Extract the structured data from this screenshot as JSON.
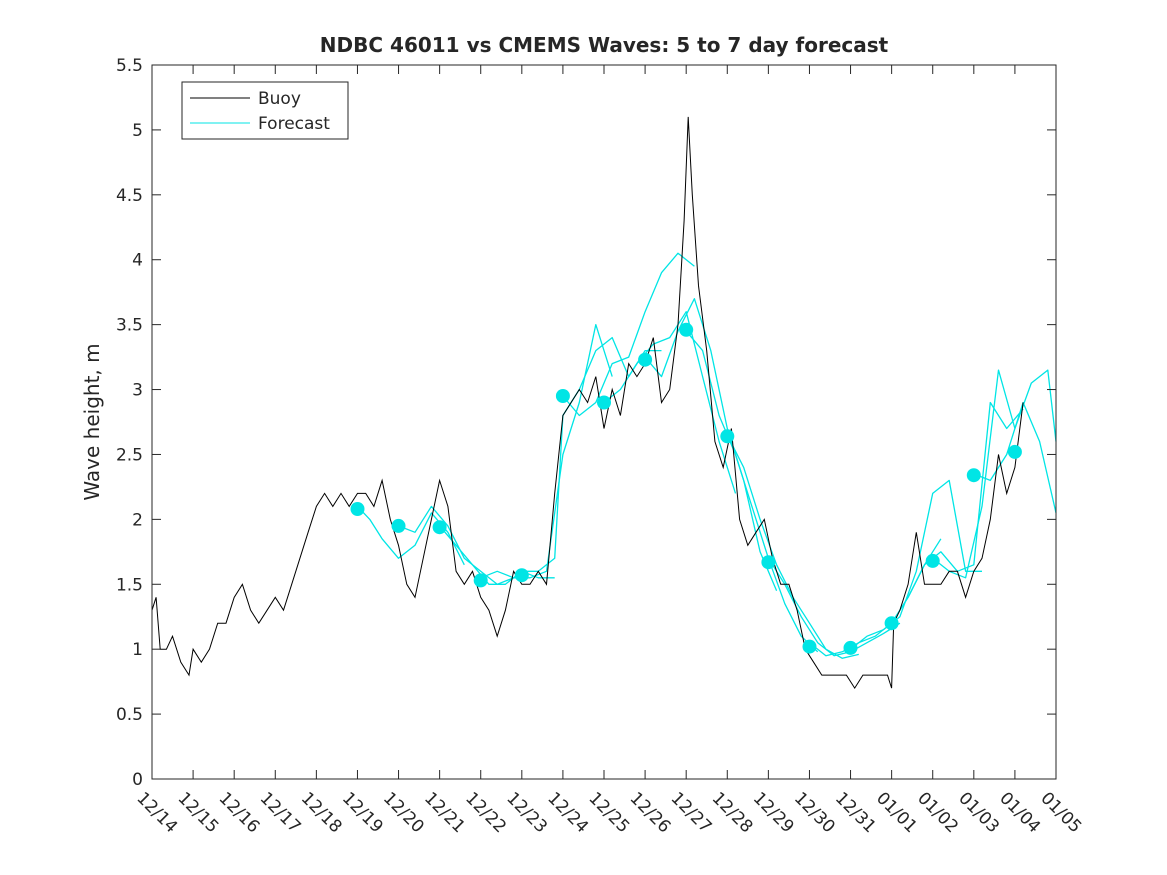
{
  "chart_data": {
    "type": "line",
    "title": "NDBC 46011 vs CMEMS Waves: 5 to 7 day forecast",
    "xlabel": "",
    "ylabel": "Wave height, m",
    "x_ticks": [
      "12/14",
      "12/15",
      "12/16",
      "12/17",
      "12/18",
      "12/19",
      "12/20",
      "12/21",
      "12/22",
      "12/23",
      "12/24",
      "12/25",
      "12/26",
      "12/27",
      "12/28",
      "12/29",
      "12/30",
      "12/31",
      "01/01",
      "01/02",
      "01/03",
      "01/04",
      "01/05"
    ],
    "y_ticks": [
      "0",
      "0.5",
      "1",
      "1.5",
      "2",
      "2.5",
      "3",
      "3.5",
      "4",
      "4.5",
      "5",
      "5.5"
    ],
    "xlim": [
      0,
      22
    ],
    "ylim": [
      0,
      5.5
    ],
    "grid": false,
    "legend": {
      "placement": "top-left",
      "entries": [
        "Buoy",
        "Forecast"
      ]
    },
    "colors": {
      "buoy": "#000000",
      "forecast": "#00e5e5",
      "axis": "#262626"
    },
    "buoy": {
      "name": "Buoy",
      "x": [
        0,
        0.1,
        0.2,
        0.35,
        0.5,
        0.7,
        0.9,
        1.0,
        1.2,
        1.4,
        1.6,
        1.8,
        2.0,
        2.2,
        2.4,
        2.6,
        2.8,
        3.0,
        3.2,
        3.4,
        3.6,
        3.8,
        4.0,
        4.2,
        4.4,
        4.6,
        4.8,
        5.0,
        5.2,
        5.4,
        5.6,
        5.8,
        6.0,
        6.2,
        6.4,
        6.6,
        6.8,
        7.0,
        7.2,
        7.4,
        7.6,
        7.8,
        8.0,
        8.2,
        8.4,
        8.6,
        8.8,
        9.0,
        9.2,
        9.4,
        9.6,
        9.8,
        10.0,
        10.2,
        10.4,
        10.6,
        10.8,
        11.0,
        11.2,
        11.4,
        11.6,
        11.8,
        12.0,
        12.2,
        12.4,
        12.6,
        12.8,
        12.95,
        13.05,
        13.15,
        13.3,
        13.5,
        13.7,
        13.9,
        14.1,
        14.3,
        14.5,
        14.7,
        14.9,
        15.1,
        15.3,
        15.5,
        15.7,
        15.9,
        16.1,
        16.3,
        16.5,
        16.7,
        16.9,
        17.1,
        17.3,
        17.5,
        17.7,
        17.9,
        18.0,
        18.05,
        18.2,
        18.4,
        18.6,
        18.8,
        19.0,
        19.2,
        19.4,
        19.6,
        19.8,
        20.0,
        20.2,
        20.4,
        20.6,
        20.8,
        21.0,
        21.2
      ],
      "values": [
        1.3,
        1.4,
        1.0,
        1.0,
        1.1,
        0.9,
        0.8,
        1.0,
        0.9,
        1.0,
        1.2,
        1.2,
        1.4,
        1.5,
        1.3,
        1.2,
        1.3,
        1.4,
        1.3,
        1.5,
        1.7,
        1.9,
        2.1,
        2.2,
        2.1,
        2.2,
        2.1,
        2.2,
        2.2,
        2.1,
        2.3,
        2.0,
        1.8,
        1.5,
        1.4,
        1.7,
        2.0,
        2.3,
        2.1,
        1.6,
        1.5,
        1.6,
        1.4,
        1.3,
        1.1,
        1.3,
        1.6,
        1.5,
        1.5,
        1.6,
        1.5,
        2.2,
        2.8,
        2.9,
        3.0,
        2.9,
        3.1,
        2.7,
        3.0,
        2.8,
        3.2,
        3.1,
        3.2,
        3.4,
        2.9,
        3.0,
        3.5,
        4.3,
        5.1,
        4.5,
        3.8,
        3.3,
        2.6,
        2.4,
        2.7,
        2.0,
        1.8,
        1.9,
        2.0,
        1.7,
        1.5,
        1.5,
        1.3,
        1.0,
        0.9,
        0.8,
        0.8,
        0.8,
        0.8,
        0.7,
        0.8,
        0.8,
        0.8,
        0.8,
        0.7,
        1.2,
        1.3,
        1.5,
        1.9,
        1.5,
        1.5,
        1.5,
        1.6,
        1.6,
        1.4,
        1.6,
        1.7,
        2.0,
        2.5,
        2.2,
        2.4,
        2.9
      ]
    },
    "forecast": {
      "name": "Forecast",
      "series": [
        {
          "x": [
            5.0,
            5.3,
            5.6,
            6.0,
            6.4,
            6.8,
            7.2,
            7.6
          ],
          "values": [
            2.1,
            2.0,
            1.85,
            1.7,
            1.8,
            2.05,
            1.9,
            1.65
          ]
        },
        {
          "x": [
            6.0,
            6.4,
            6.8,
            7.2,
            7.6,
            8.0,
            8.4,
            8.8
          ],
          "values": [
            1.95,
            1.9,
            2.1,
            1.95,
            1.7,
            1.6,
            1.5,
            1.55
          ]
        },
        {
          "x": [
            7.0,
            7.4,
            7.8,
            8.2,
            8.6,
            9.0,
            9.4,
            9.8
          ],
          "values": [
            1.95,
            1.8,
            1.65,
            1.5,
            1.5,
            1.6,
            1.55,
            1.55
          ]
        },
        {
          "x": [
            8.0,
            8.4,
            8.8,
            9.2,
            9.6,
            10.0,
            10.4,
            10.8,
            11.2
          ],
          "values": [
            1.55,
            1.6,
            1.55,
            1.55,
            1.6,
            2.5,
            2.9,
            3.5,
            3.1
          ]
        },
        {
          "x": [
            9.0,
            9.4,
            9.8,
            10.0,
            10.4,
            10.8,
            11.2,
            11.6,
            12.0,
            12.4
          ],
          "values": [
            1.6,
            1.6,
            1.7,
            2.8,
            3.0,
            3.3,
            3.4,
            3.1,
            3.3,
            3.3
          ]
        },
        {
          "x": [
            10.0,
            10.4,
            10.8,
            11.2,
            11.6,
            12.0,
            12.4,
            12.8,
            13.2
          ],
          "values": [
            2.95,
            2.8,
            2.9,
            3.2,
            3.25,
            3.6,
            3.9,
            4.05,
            3.95
          ]
        },
        {
          "x": [
            11.0,
            11.4,
            11.8,
            12.2,
            12.6,
            13.0,
            13.4,
            13.8,
            14.2
          ],
          "values": [
            2.9,
            3.0,
            3.2,
            3.35,
            3.4,
            3.6,
            3.1,
            2.6,
            2.2
          ]
        },
        {
          "x": [
            12.0,
            12.4,
            12.8,
            13.2,
            13.6,
            14.0,
            14.4,
            14.8,
            15.2
          ],
          "values": [
            3.25,
            3.1,
            3.45,
            3.7,
            3.3,
            2.7,
            2.3,
            1.75,
            1.45
          ]
        },
        {
          "x": [
            13.0,
            13.4,
            13.8,
            14.2,
            14.6,
            15.0,
            15.4,
            15.8,
            16.2
          ],
          "values": [
            3.45,
            3.3,
            2.8,
            2.5,
            2.1,
            1.7,
            1.35,
            1.1,
            0.98
          ]
        },
        {
          "x": [
            14.0,
            14.4,
            14.8,
            15.2,
            15.6,
            16.0,
            16.4,
            16.8,
            17.2
          ],
          "values": [
            2.65,
            2.4,
            2.0,
            1.65,
            1.4,
            1.2,
            1.0,
            0.93,
            0.96
          ]
        },
        {
          "x": [
            15.0,
            15.4,
            15.8,
            16.2,
            16.6,
            17.0,
            17.4,
            17.8,
            18.2
          ],
          "values": [
            1.7,
            1.5,
            1.25,
            1.05,
            0.95,
            0.98,
            1.05,
            1.12,
            1.2
          ]
        },
        {
          "x": [
            16.0,
            16.4,
            16.8,
            17.2,
            17.6,
            18.0,
            18.4,
            18.8,
            19.2
          ],
          "values": [
            1.05,
            0.95,
            0.98,
            1.05,
            1.1,
            1.2,
            1.4,
            1.65,
            1.85
          ]
        },
        {
          "x": [
            17.0,
            17.4,
            17.8,
            18.2,
            18.6,
            19.0,
            19.4,
            19.8,
            20.2
          ],
          "values": [
            1.0,
            1.1,
            1.15,
            1.25,
            1.6,
            2.2,
            2.3,
            1.6,
            1.6
          ]
        },
        {
          "x": [
            18.0,
            18.4,
            18.8,
            19.2,
            19.6,
            20.0,
            20.4,
            20.8,
            21.2
          ],
          "values": [
            1.2,
            1.4,
            1.65,
            1.75,
            1.6,
            1.65,
            2.9,
            2.7,
            2.85
          ]
        },
        {
          "x": [
            19.0,
            19.4,
            19.8,
            20.2,
            20.6,
            21.0,
            21.4,
            21.8,
            22.0
          ],
          "values": [
            1.7,
            1.6,
            1.55,
            2.1,
            3.15,
            2.7,
            3.05,
            3.15,
            2.6
          ]
        },
        {
          "x": [
            20.0,
            20.4,
            20.8,
            21.2,
            21.6,
            22.0
          ],
          "values": [
            2.35,
            2.3,
            2.5,
            2.9,
            2.6,
            2.05
          ]
        }
      ],
      "markers": {
        "x": [
          5,
          6,
          7,
          8,
          9,
          10,
          11,
          12,
          13,
          14,
          15,
          16,
          17,
          18,
          19,
          20,
          21
        ],
        "values": [
          2.08,
          1.95,
          1.94,
          1.53,
          1.57,
          2.95,
          2.9,
          3.23,
          3.46,
          2.64,
          1.67,
          1.02,
          1.01,
          1.2,
          1.68,
          2.34,
          2.52
        ]
      }
    }
  }
}
